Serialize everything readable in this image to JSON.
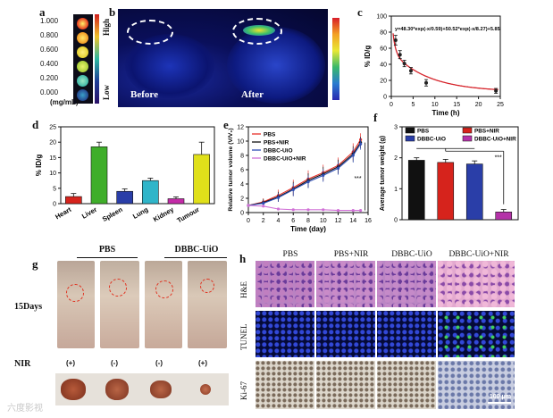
{
  "panels": {
    "a": {
      "letter": "a",
      "conc_labels": [
        "1.000",
        "0.800",
        "0.600",
        "0.400",
        "0.200",
        "0.000"
      ],
      "unit": "(mg/mL)",
      "scale_high": "High",
      "scale_low": "Low"
    },
    "b": {
      "letter": "b",
      "before": "Before",
      "after": "After"
    },
    "c": {
      "letter": "c"
    },
    "d": {
      "letter": "d"
    },
    "e": {
      "letter": "e"
    },
    "f": {
      "letter": "f"
    },
    "g": {
      "letter": "g",
      "group_pbs": "PBS",
      "group_dbbc": "DBBC-UiO",
      "days": "15Days",
      "nir_label": "NIR",
      "nir_marks": [
        "(+)",
        "(-)",
        "(-)",
        "(+)"
      ]
    },
    "h": {
      "letter": "h",
      "columns": [
        "PBS",
        "PBS+NIR",
        "DBBC-UiO",
        "DBBC-UiO+NIR"
      ],
      "rows": [
        "H&E",
        "TUNEL",
        "Ki-67"
      ],
      "scalebar": "100 μm"
    },
    "watermark": "六度影视"
  },
  "chart_data": [
    {
      "id": "c",
      "type": "line",
      "title": "",
      "xlabel": "Time (h)",
      "ylabel": "% ID/g",
      "xlim": [
        0,
        25
      ],
      "ylim": [
        0,
        100
      ],
      "xticks": [
        0,
        5,
        10,
        15,
        20,
        25
      ],
      "yticks": [
        0,
        20,
        40,
        60,
        80,
        100
      ],
      "equation": "y=48.30*exp(-x/0.59)+50.52*exp(-x/8.27)+5.85",
      "fit_params": {
        "A1": 48.3,
        "t1": 0.59,
        "A2": 50.52,
        "t2": 8.27,
        "y0": 5.85
      },
      "points": [
        {
          "x": 1,
          "y": 70,
          "err": 6
        },
        {
          "x": 2,
          "y": 52,
          "err": 5
        },
        {
          "x": 3,
          "y": 41,
          "err": 4
        },
        {
          "x": 4.5,
          "y": 32,
          "err": 4
        },
        {
          "x": 8,
          "y": 17,
          "err": 4
        },
        {
          "x": 24,
          "y": 7,
          "err": 3
        }
      ]
    },
    {
      "id": "d",
      "type": "bar",
      "ylabel": "% ID/g",
      "ylim": [
        0,
        25
      ],
      "yticks": [
        0,
        5,
        10,
        15,
        20,
        25
      ],
      "categories": [
        "Heart",
        "Liver",
        "Spleen",
        "Lung",
        "Kidney",
        "Tumour"
      ],
      "values": [
        2.3,
        18.5,
        4.0,
        7.5,
        1.6,
        16.0
      ],
      "errors": [
        1.0,
        1.5,
        0.8,
        0.8,
        0.6,
        4.0
      ],
      "colors": [
        "#d6231c",
        "#3fae2a",
        "#2a3ea8",
        "#2fb5c9",
        "#c42ba8",
        "#e0e01a"
      ]
    },
    {
      "id": "e",
      "type": "line",
      "xlabel": "Time (day)",
      "ylabel": "Relative tumor volume (V/V₀)",
      "xlim": [
        0,
        16
      ],
      "ylim": [
        0,
        12
      ],
      "xticks": [
        0,
        2,
        4,
        6,
        8,
        10,
        12,
        14,
        16
      ],
      "yticks": [
        0,
        2,
        4,
        6,
        8,
        10,
        12
      ],
      "annotation": "***",
      "series": [
        {
          "name": "PBS",
          "color": "#e8302a",
          "marker": "dot",
          "x": [
            0,
            2,
            4,
            6,
            8,
            10,
            12,
            14,
            15
          ],
          "y": [
            1,
            1.5,
            2.4,
            3.5,
            4.7,
            5.6,
            6.6,
            8.5,
            10.2
          ],
          "err": [
            0.2,
            0.5,
            0.8,
            1.1,
            1.2,
            1.1,
            1.1,
            1.2,
            0.9
          ]
        },
        {
          "name": "PBS+NIR",
          "color": "#111111",
          "marker": "dot",
          "x": [
            0,
            2,
            4,
            6,
            8,
            10,
            12,
            14,
            15
          ],
          "y": [
            1,
            1.4,
            2.2,
            3.3,
            4.5,
            5.4,
            6.4,
            8.2,
            9.8
          ],
          "err": [
            0.2,
            0.5,
            0.7,
            1.0,
            1.0,
            1.0,
            1.0,
            1.1,
            0.8
          ]
        },
        {
          "name": "DBBC-UiO",
          "color": "#2f4fb5",
          "marker": "dot",
          "x": [
            0,
            2,
            4,
            6,
            8,
            10,
            12,
            14,
            15
          ],
          "y": [
            1,
            1.3,
            2.1,
            3.2,
            4.3,
            5.2,
            6.2,
            8.0,
            9.6
          ],
          "err": [
            0.2,
            0.4,
            0.6,
            0.9,
            0.9,
            0.9,
            0.9,
            1.0,
            0.8
          ]
        },
        {
          "name": "DBBC-UiO+NIR",
          "color": "#d070d6",
          "marker": "dot",
          "x": [
            0,
            2,
            4,
            6,
            8,
            10,
            12,
            14,
            15
          ],
          "y": [
            1,
            0.9,
            0.5,
            0.4,
            0.4,
            0.4,
            0.3,
            0.3,
            0.3
          ],
          "err": [
            0.1,
            0.1,
            0.1,
            0.1,
            0.1,
            0.1,
            0.1,
            0.1,
            0.1
          ]
        }
      ]
    },
    {
      "id": "f",
      "type": "bar",
      "ylabel": "Average tumor weight (g)",
      "ylim": [
        0,
        3
      ],
      "yticks": [
        0,
        1,
        2,
        3
      ],
      "annotation": "***",
      "series": [
        {
          "name": "PBS",
          "value": 1.92,
          "err": 0.08,
          "color": "#111111"
        },
        {
          "name": "PBS+NIR",
          "value": 1.85,
          "err": 0.1,
          "color": "#d6231c"
        },
        {
          "name": "DBBC-UiO",
          "value": 1.8,
          "err": 0.1,
          "color": "#2a3ea8"
        },
        {
          "name": "DBBC-UiO+NIR",
          "value": 0.25,
          "err": 0.08,
          "color": "#b432a8"
        }
      ]
    }
  ]
}
